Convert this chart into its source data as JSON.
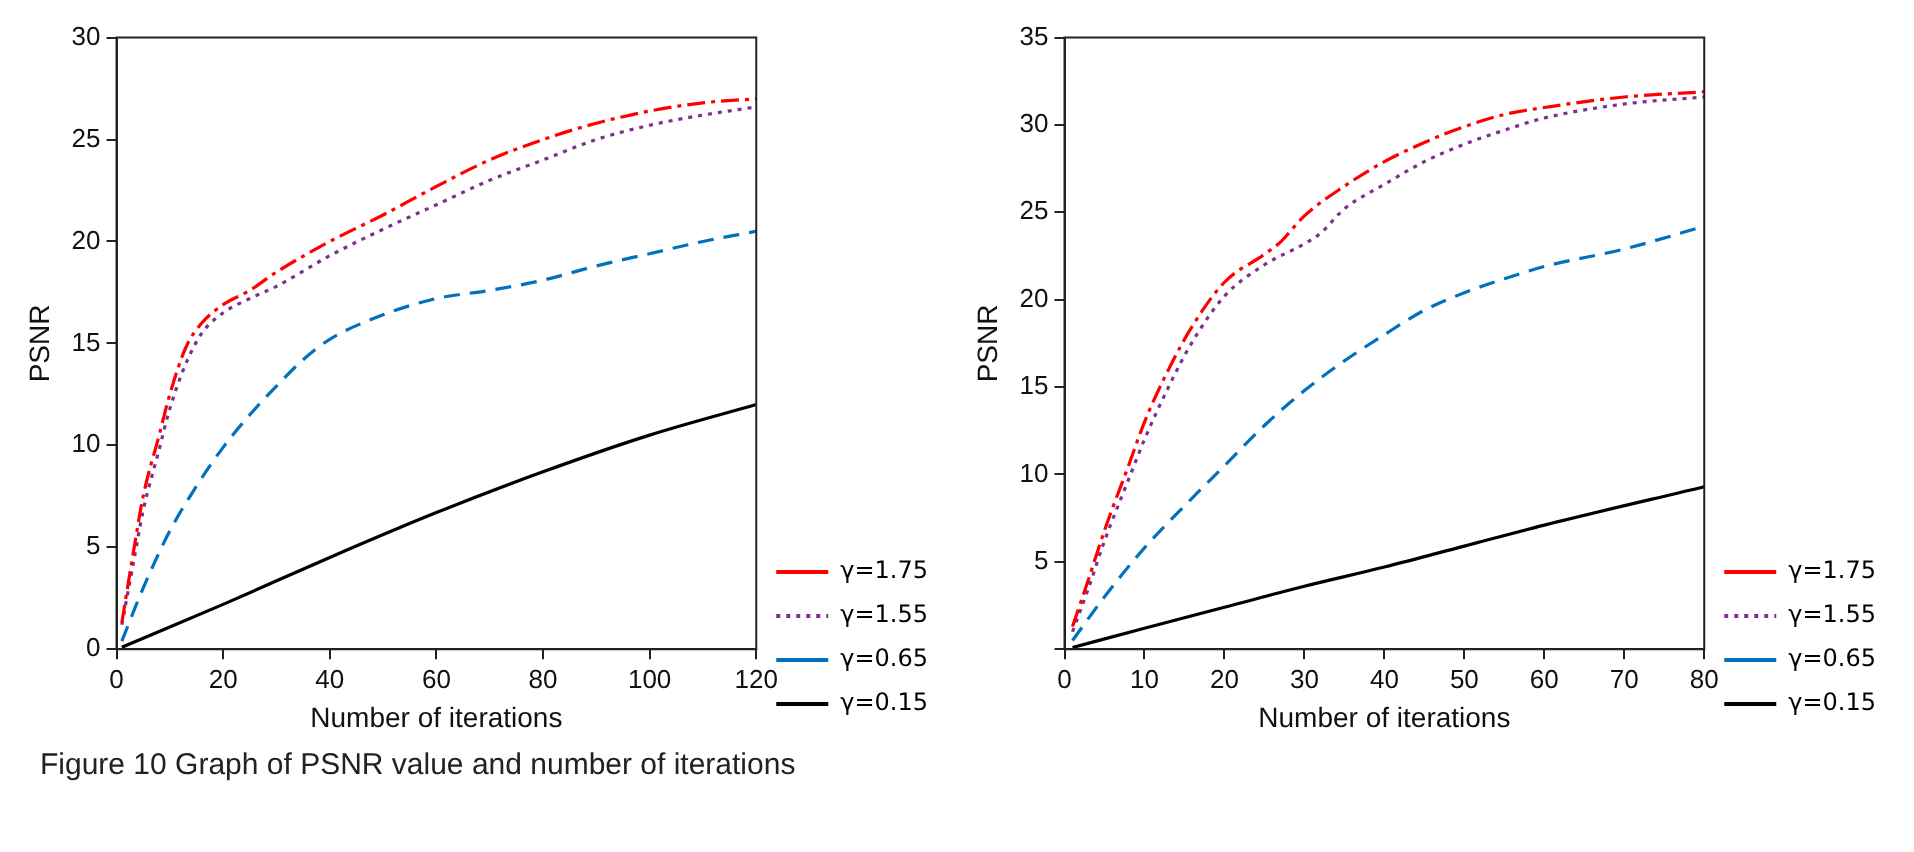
{
  "chart_data": [
    {
      "type": "line",
      "xlabel": "Number of iterations",
      "ylabel": "PSNR",
      "xlim": [
        0,
        120
      ],
      "xticks": [
        0,
        20,
        40,
        60,
        80,
        100,
        120
      ],
      "ylim": [
        0,
        30
      ],
      "yticks": [
        0,
        5,
        10,
        15,
        20,
        25,
        30
      ],
      "grid": false,
      "legend": "bottom right",
      "marker": "none",
      "annotations": [
        "Figure 10  Graph of PSNR value and number of iterations"
      ],
      "series": [
        {
          "name": "γ=1.75",
          "color": "#ff0000",
          "line_style": "dashdot",
          "x": [
            1,
            3,
            5,
            8,
            10,
            13,
            16,
            20,
            25,
            30,
            40,
            50,
            60,
            70,
            80,
            90,
            100,
            110,
            120
          ],
          "values": [
            1.3,
            4.5,
            7.5,
            10.5,
            12.5,
            14.8,
            16,
            16.9,
            17.6,
            18.5,
            20,
            21.3,
            22.7,
            24,
            25,
            25.8,
            26.4,
            26.8,
            27
          ]
        },
        {
          "name": "γ=1.55",
          "color": "#7e2f8e",
          "line_style": "dotted",
          "x": [
            1,
            3,
            5,
            8,
            10,
            13,
            16,
            20,
            25,
            30,
            40,
            50,
            60,
            70,
            80,
            90,
            100,
            110,
            120
          ],
          "values": [
            1.2,
            4,
            6.8,
            9.8,
            11.8,
            14,
            15.5,
            16.5,
            17.2,
            17.8,
            19.3,
            20.6,
            21.8,
            23,
            24,
            25,
            25.7,
            26.2,
            26.6
          ]
        },
        {
          "name": "γ=0.65",
          "color": "#0072bd",
          "line_style": "dashed",
          "x": [
            1,
            5,
            10,
            15,
            20,
            25,
            30,
            35,
            40,
            50,
            60,
            70,
            80,
            90,
            100,
            110,
            120
          ],
          "values": [
            0.4,
            3,
            5.8,
            8,
            9.9,
            11.5,
            12.9,
            14.2,
            15.2,
            16.4,
            17.2,
            17.6,
            18.1,
            18.8,
            19.4,
            20,
            20.5
          ]
        },
        {
          "name": "γ=0.15",
          "color": "#000000",
          "line_style": "solid",
          "x": [
            1,
            20,
            40,
            60,
            80,
            100,
            120
          ],
          "values": [
            0.1,
            2.2,
            4.5,
            6.7,
            8.7,
            10.5,
            12
          ]
        }
      ]
    },
    {
      "type": "line",
      "xlabel": "Number of iterations",
      "ylabel": "PSNR",
      "xlim": [
        0,
        80
      ],
      "xticks": [
        0,
        10,
        20,
        30,
        40,
        50,
        60,
        70,
        80
      ],
      "ylim": [
        0,
        35
      ],
      "yticks": [
        {
          "value": 0,
          "label": null
        },
        5,
        10,
        15,
        20,
        25,
        30,
        35
      ],
      "grid": false,
      "legend": "bottom right",
      "marker": "none",
      "series": [
        {
          "name": "γ=1.75",
          "color": "#ff0000",
          "line_style": "dashdot",
          "x": [
            1,
            3,
            5,
            8,
            10,
            13,
            16,
            20,
            25,
            27,
            30,
            35,
            40,
            45,
            50,
            55,
            60,
            70,
            80
          ],
          "values": [
            1.3,
            4,
            6.8,
            10.5,
            13,
            16,
            18.5,
            21,
            22.6,
            23.3,
            24.8,
            26.5,
            27.9,
            29,
            29.9,
            30.6,
            31,
            31.6,
            31.9
          ]
        },
        {
          "name": "γ=1.55",
          "color": "#7e2f8e",
          "line_style": "dotted",
          "x": [
            1,
            3,
            5,
            8,
            10,
            13,
            16,
            20,
            25,
            30,
            32,
            35,
            40,
            45,
            50,
            55,
            60,
            70,
            80
          ],
          "values": [
            1,
            3.5,
            6.2,
            9.7,
            12,
            15,
            17.6,
            20.2,
            22,
            23.2,
            23.8,
            25.2,
            26.6,
            27.9,
            28.9,
            29.7,
            30.4,
            31.2,
            31.6
          ]
        },
        {
          "name": "γ=0.65",
          "color": "#0072bd",
          "line_style": "dashed",
          "x": [
            1,
            5,
            10,
            15,
            20,
            25,
            30,
            35,
            40,
            45,
            50,
            55,
            60,
            70,
            80
          ],
          "values": [
            0.5,
            3,
            5.8,
            8.2,
            10.5,
            12.8,
            14.8,
            16.5,
            18,
            19.4,
            20.4,
            21.2,
            21.9,
            22.9,
            24.2
          ]
        },
        {
          "name": "γ=0.15",
          "color": "#000000",
          "line_style": "solid",
          "x": [
            1,
            10,
            20,
            30,
            40,
            50,
            60,
            80
          ],
          "values": [
            0.1,
            1.2,
            2.4,
            3.6,
            4.7,
            5.9,
            7.1,
            9.3
          ]
        }
      ]
    }
  ]
}
